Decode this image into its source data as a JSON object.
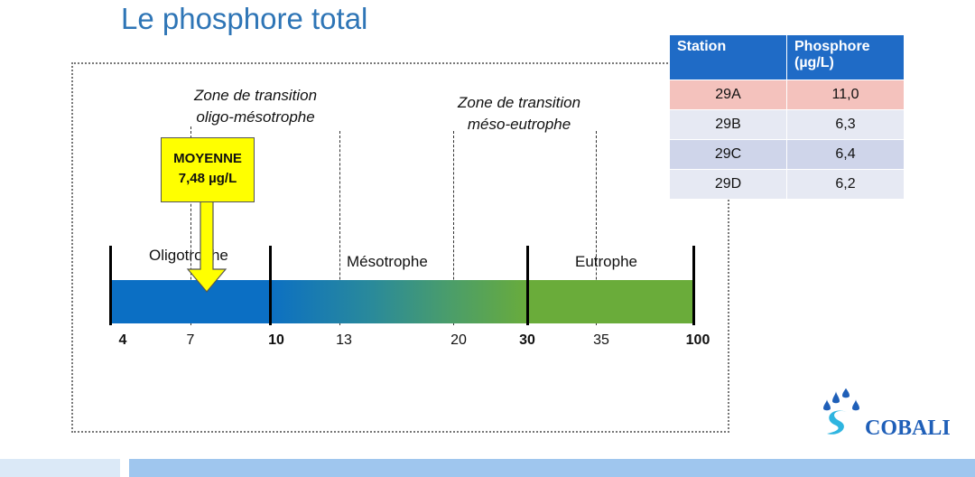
{
  "title": "Le phosphore total",
  "zones": {
    "oligo_meso": [
      "Zone de transition",
      "oligo-mésotrophe"
    ],
    "meso_eutro": [
      "Zone de transition",
      "méso-eutrophe"
    ]
  },
  "categories": [
    "Oligotrophe",
    "Mésotrophe",
    "Eutrophe"
  ],
  "axis_labels": [
    "4",
    "7",
    "10",
    "13",
    "20",
    "30",
    "35",
    "100"
  ],
  "mean": {
    "label": "MOYENNE",
    "value": "7,48 µg/L"
  },
  "table": {
    "headers": [
      "Station",
      "Phosphore (µg/L)"
    ],
    "rows": [
      {
        "station": "29A",
        "value": "11,0"
      },
      {
        "station": "29B",
        "value": "6,3"
      },
      {
        "station": "29C",
        "value": "6,4"
      },
      {
        "station": "29D",
        "value": "6,2"
      }
    ]
  },
  "colors": {
    "title": "#2e75b6",
    "table_header": "#1f6bc6",
    "row_highlight": "#f4c2bd",
    "row_light": "#e6e9f3",
    "row_dark": "#cfd5ea",
    "mean_box": "#ffff00",
    "bar_start": "#0b6fc4",
    "bar_end": "#6aac3a"
  },
  "logo": {
    "text": "COBALI",
    "icon": "cobali-water-drops-icon"
  }
}
